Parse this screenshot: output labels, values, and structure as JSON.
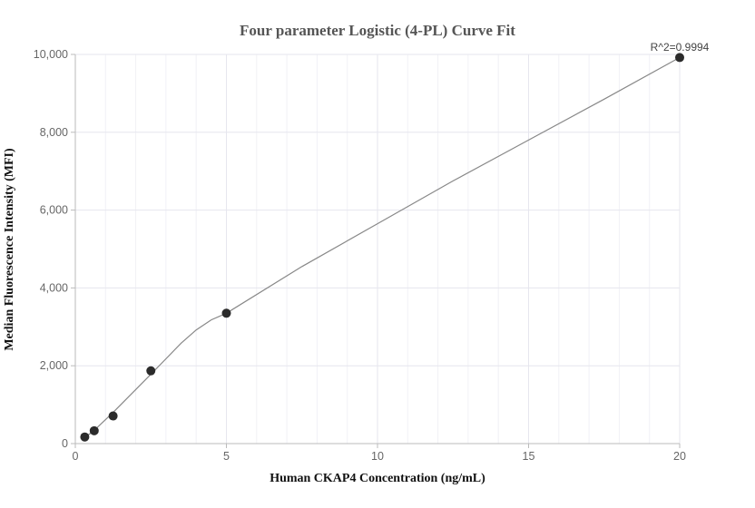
{
  "chart_data": {
    "type": "scatter",
    "title": "Four parameter Logistic (4-PL) Curve Fit",
    "xlabel": "Human CKAP4 Concentration (ng/mL)",
    "ylabel": "Median Fluorescence Intensity (MFI)",
    "xlim": [
      0,
      20
    ],
    "ylim": [
      0,
      10000
    ],
    "x_ticks": [
      0,
      5,
      10,
      15,
      20
    ],
    "x_tick_labels": [
      "0",
      "5",
      "10",
      "15",
      "20"
    ],
    "y_ticks": [
      0,
      2000,
      4000,
      6000,
      8000,
      10000
    ],
    "y_tick_labels": [
      "0",
      "2,000",
      "4,000",
      "6,000",
      "8,000",
      "10,000"
    ],
    "grid": true,
    "annotation": "R^2=0.9994",
    "colors": {
      "points": "#2b2b2b",
      "curve": "#888888",
      "grid": "#e6e6ee",
      "axis": "#bbbbbb"
    },
    "points": [
      {
        "x": 0.3125,
        "y": 170
      },
      {
        "x": 0.625,
        "y": 330
      },
      {
        "x": 1.25,
        "y": 710
      },
      {
        "x": 2.5,
        "y": 1870
      },
      {
        "x": 5,
        "y": 3350
      },
      {
        "x": 20,
        "y": 9920
      }
    ],
    "fit_curve": [
      {
        "x": 0.3125,
        "y": 150
      },
      {
        "x": 0.625,
        "y": 340
      },
      {
        "x": 1.25,
        "y": 800
      },
      {
        "x": 2.0,
        "y": 1390
      },
      {
        "x": 2.5,
        "y": 1780
      },
      {
        "x": 3.0,
        "y": 2180
      },
      {
        "x": 3.5,
        "y": 2580
      },
      {
        "x": 4.0,
        "y": 2920
      },
      {
        "x": 4.5,
        "y": 3180
      },
      {
        "x": 5.0,
        "y": 3350
      },
      {
        "x": 7.5,
        "y": 4550
      },
      {
        "x": 10,
        "y": 5650
      },
      {
        "x": 12.5,
        "y": 6750
      },
      {
        "x": 15,
        "y": 7800
      },
      {
        "x": 17.5,
        "y": 8850
      },
      {
        "x": 20,
        "y": 9920
      }
    ]
  }
}
